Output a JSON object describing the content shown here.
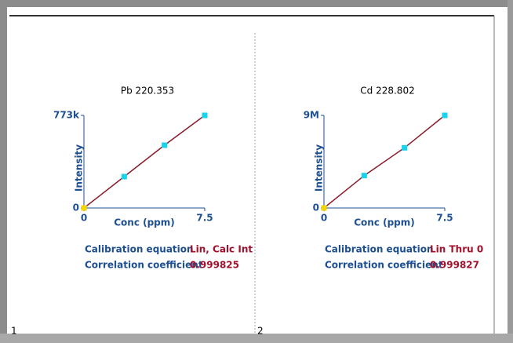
{
  "chart_data": [
    {
      "type": "line",
      "title": "Pb 220.353",
      "x_label": "Conc (ppm)",
      "y_label": "Intensity",
      "x": [
        0,
        2.5,
        5,
        7.5
      ],
      "values": [
        0,
        262000,
        524000,
        773000
      ],
      "xlim": [
        0,
        7.5
      ],
      "xticks": [
        0,
        7.5
      ],
      "ylim": [
        0,
        773000
      ],
      "yticks": [
        0,
        {
          "value": 773000,
          "label": "773k"
        }
      ],
      "line_color": "#8b1a2a",
      "marker_colors": [
        "#f2d600",
        "#19d3ec",
        "#19d3ec",
        "#19d3ec"
      ],
      "annotations": [
        {
          "label": "Calibration equation",
          "value": "Lin, Calc Int"
        },
        {
          "label": "Correlation coefficient",
          "value": "0.999825"
        }
      ],
      "page_number": "1"
    },
    {
      "type": "line",
      "title": "Cd 228.802",
      "x_label": "Conc (ppm)",
      "y_label": "Intensity",
      "x": [
        0,
        2.5,
        5,
        7.5
      ],
      "values": [
        0,
        3150000,
        5850000,
        9000000
      ],
      "xlim": [
        0,
        7.5
      ],
      "xticks": [
        0,
        7.5
      ],
      "ylim": [
        0,
        9000000
      ],
      "yticks": [
        0,
        {
          "value": 9000000,
          "label": "9M"
        }
      ],
      "line_color": "#8b1a2a",
      "marker_colors": [
        "#f2d600",
        "#19d3ec",
        "#19d3ec",
        "#19d3ec"
      ],
      "annotations": [
        {
          "label": "Calibration equation",
          "value": "Lin Thru 0"
        },
        {
          "label": "Correlation coefficient",
          "value": "0.999827"
        }
      ],
      "page_number": "2"
    }
  ]
}
